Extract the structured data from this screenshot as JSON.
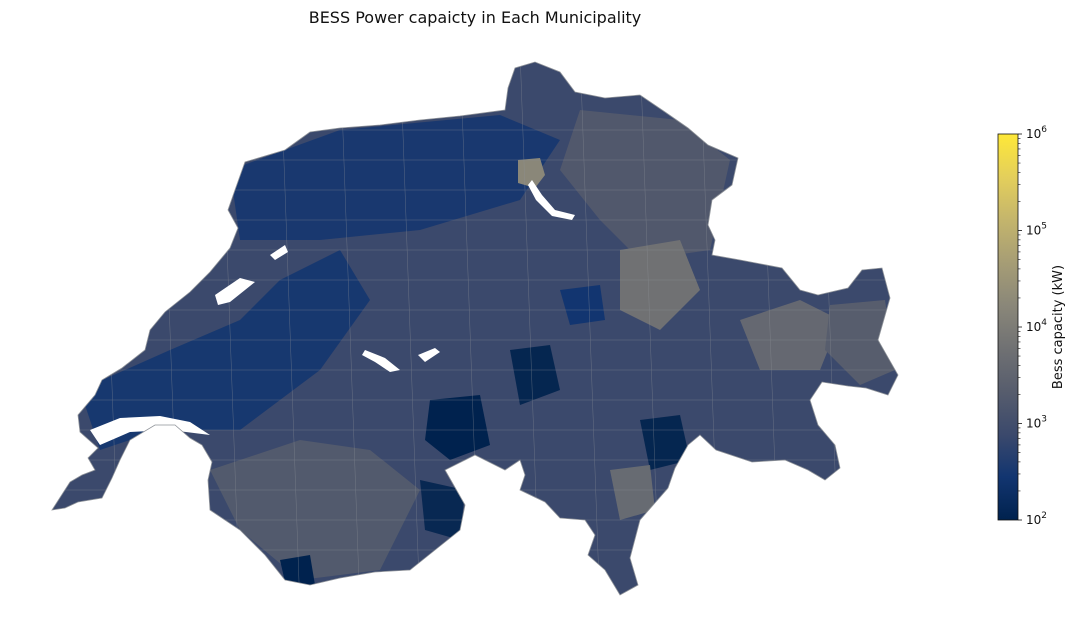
{
  "title": "BESS Power capaicty in Each Municipality",
  "colorbar": {
    "label": "Bess capacity (kW)",
    "scale": "log",
    "range": [
      100,
      1000000
    ],
    "colormap": "cividis",
    "colors": [
      "#00224e",
      "#123570",
      "#3b496c",
      "#575d6d",
      "#707173",
      "#8a8779",
      "#a69d75",
      "#c4b56c",
      "#e4cf5b",
      "#fee838"
    ],
    "ticks": [
      {
        "base": "10",
        "exp": "2"
      },
      {
        "base": "10",
        "exp": "3"
      },
      {
        "base": "10",
        "exp": "4"
      },
      {
        "base": "10",
        "exp": "5"
      },
      {
        "base": "10",
        "exp": "6"
      }
    ]
  },
  "map": {
    "region": "Switzerland",
    "lake_color": "#ffffff",
    "border_color": "#8f9399"
  }
}
